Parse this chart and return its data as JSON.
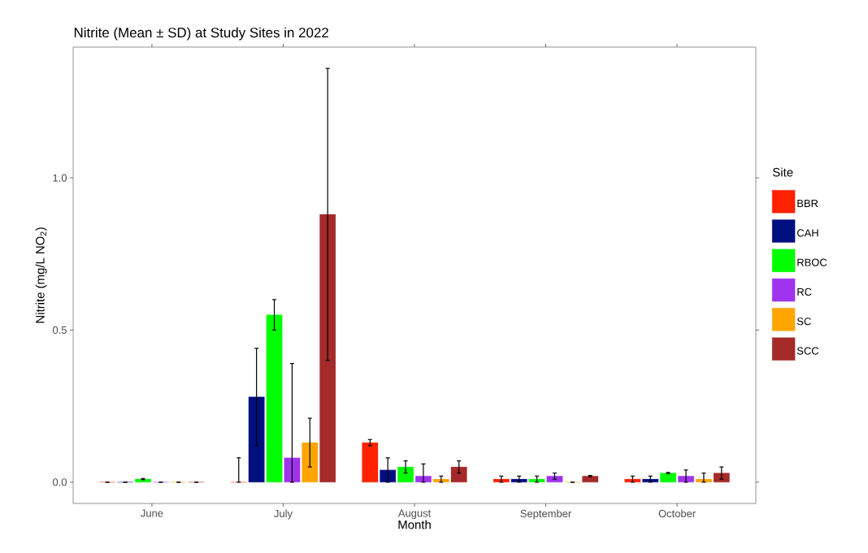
{
  "chart_data": {
    "type": "bar",
    "title": "Nitrite (Mean ± SD) at Study Sites in 2022",
    "xlabel": "Month",
    "ylabel": "Nitrite (mg/L NO$_{2}$)",
    "legend_title": "Site",
    "categories": [
      "June",
      "July",
      "August",
      "September",
      "October"
    ],
    "series": [
      {
        "name": "BBR",
        "color": "#ff2200",
        "values": [
          0,
          0,
          0.13,
          0.01,
          0.01
        ],
        "errors": [
          0,
          [
            0,
            0.08
          ],
          0.01,
          [
            0,
            0.02
          ],
          [
            0,
            0.02
          ]
        ]
      },
      {
        "name": "CAH",
        "color": "#000f7f",
        "values": [
          0,
          0.28,
          0.04,
          0.01,
          0.01
        ],
        "errors": [
          0,
          0.16,
          [
            0,
            0.08
          ],
          [
            0,
            0.02
          ],
          [
            0,
            0.02
          ]
        ]
      },
      {
        "name": "RBOC",
        "color": "#00ff00",
        "values": [
          0.01,
          0.55,
          0.05,
          0.01,
          0.03
        ],
        "errors": [
          0.002,
          0.05,
          0.02,
          [
            0,
            0.02
          ],
          0.002
        ]
      },
      {
        "name": "RC",
        "color": "#a033ee",
        "values": [
          0,
          0.08,
          0.02,
          0.02,
          0.02
        ],
        "errors": [
          0,
          [
            0,
            0.39
          ],
          [
            0,
            0.06
          ],
          0.01,
          [
            0,
            0.04
          ]
        ]
      },
      {
        "name": "SC",
        "color": "#ffa500",
        "values": [
          0,
          0.13,
          0.01,
          0,
          0.01
        ],
        "errors": [
          0,
          0.08,
          [
            0,
            0.02
          ],
          0,
          [
            0,
            0.03
          ]
        ]
      },
      {
        "name": "SCC",
        "color": "#a52a2a",
        "values": [
          0,
          0.88,
          0.05,
          0.02,
          0.03
        ],
        "errors": [
          0,
          0.48,
          0.02,
          0.002,
          0.02
        ]
      }
    ],
    "ylim": [
      -0.07,
      1.43
    ],
    "yticks": [
      {
        "value": 0,
        "label": "0.0"
      },
      {
        "value": 0.5,
        "label": "0.5"
      },
      {
        "value": 1.0,
        "label": "1.0"
      }
    ],
    "grid": false,
    "legend": "right"
  }
}
